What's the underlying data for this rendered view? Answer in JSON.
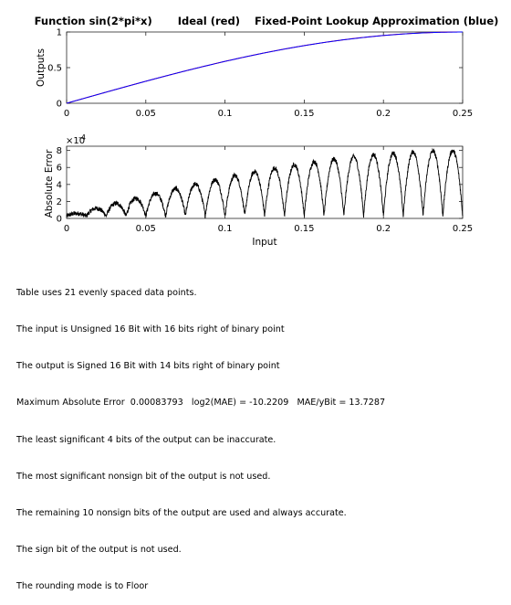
{
  "report": [
    "Table uses 21 evenly spaced data points.",
    "The input is Unsigned 16 Bit with 16 bits right of binary point",
    "The output is Signed 16 Bit with 14 bits right of binary point",
    "Maximum Absolute Error  0.00083793   log2(MAE) = -10.2209   MAE/yBit = 13.7287",
    "The least significant 4 bits of the output can be inaccurate.",
    "The most significant nonsign bit of the output is not used.",
    "The remaining 10 nonsign bits of the output are used and always accurate.",
    "The sign bit of the output is not used.",
    "The rounding mode is to Floor"
  ],
  "chart_data": [
    {
      "type": "line",
      "title": "Function sin(2*pi*x)       Ideal (red)    Fixed-Point Lookup Approximation (blue)",
      "xlabel": "",
      "ylabel": "Outputs",
      "xlim": [
        0,
        0.25
      ],
      "ylim": [
        0,
        1
      ],
      "xticks": [
        "0",
        "0.05",
        "0.1",
        "0.15",
        "0.2",
        "0.25"
      ],
      "yticks": [
        "0",
        "0.5",
        "1"
      ],
      "function": "sin(2*pi*x)",
      "series": [
        {
          "name": "Ideal",
          "color": "#ff0000"
        },
        {
          "name": "Fixed-Point Lookup Approximation",
          "color": "#0000ff"
        }
      ],
      "grid": false
    },
    {
      "type": "line",
      "title": "",
      "xlabel": "Input",
      "ylabel": "Absolute Error",
      "xlim": [
        0,
        0.25
      ],
      "ylim": [
        0,
        8.5
      ],
      "y_exponent_label": "×10",
      "y_exponent": "-4",
      "xticks": [
        "0",
        "0.05",
        "0.1",
        "0.15",
        "0.2",
        "0.25"
      ],
      "yticks": [
        "0",
        "2",
        "4",
        "6",
        "8"
      ],
      "breakpoints": 21,
      "max_abs_error_x1e4": 8.3793,
      "series": [
        {
          "color": "#000000"
        }
      ],
      "grid": false
    }
  ]
}
